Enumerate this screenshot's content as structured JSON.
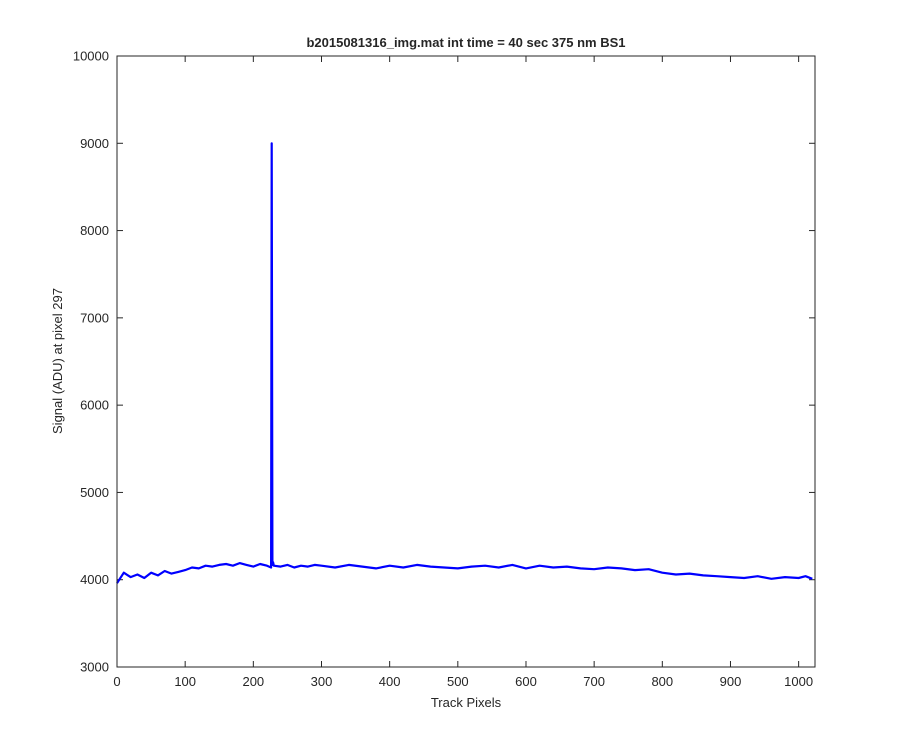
{
  "chart_data": {
    "type": "line",
    "title": "b2015081316_img.mat int time = 40 sec  375 nm BS1",
    "xlabel": "Track Pixels",
    "ylabel": "Signal (ADU) at pixel 297",
    "xlim": [
      0,
      1024
    ],
    "ylim": [
      3000,
      10000
    ],
    "x_ticks": [
      0,
      100,
      200,
      300,
      400,
      500,
      600,
      700,
      800,
      900,
      1000
    ],
    "x_tick_labels": [
      "0",
      "100",
      "200",
      "300",
      "400",
      "500",
      "600",
      "700",
      "800",
      "900",
      "1000"
    ],
    "y_ticks": [
      3000,
      4000,
      5000,
      6000,
      7000,
      8000,
      9000,
      10000
    ],
    "y_tick_labels": [
      "3000",
      "4000",
      "5000",
      "6000",
      "7000",
      "8000",
      "9000",
      "10000"
    ],
    "grid": false,
    "box": true,
    "series": [
      {
        "name": "",
        "color": "#0000ff",
        "x": [
          0,
          10,
          20,
          30,
          40,
          50,
          60,
          70,
          80,
          90,
          100,
          110,
          120,
          130,
          140,
          150,
          160,
          170,
          180,
          190,
          200,
          210,
          220,
          226,
          227,
          228,
          229,
          230,
          240,
          250,
          260,
          270,
          280,
          290,
          300,
          320,
          340,
          360,
          380,
          400,
          420,
          440,
          460,
          480,
          500,
          520,
          540,
          560,
          580,
          600,
          620,
          640,
          660,
          680,
          700,
          720,
          740,
          760,
          780,
          800,
          820,
          840,
          860,
          880,
          900,
          920,
          940,
          960,
          980,
          1000,
          1010,
          1020
        ],
        "y": [
          3960,
          4080,
          4030,
          4060,
          4020,
          4080,
          4050,
          4100,
          4070,
          4090,
          4110,
          4140,
          4130,
          4160,
          4150,
          4170,
          4180,
          4160,
          4190,
          4170,
          4150,
          4180,
          4160,
          4140,
          9000,
          4170,
          4200,
          4160,
          4150,
          4170,
          4140,
          4160,
          4150,
          4170,
          4160,
          4140,
          4170,
          4150,
          4130,
          4160,
          4140,
          4170,
          4150,
          4140,
          4130,
          4150,
          4160,
          4140,
          4170,
          4130,
          4160,
          4140,
          4150,
          4130,
          4120,
          4140,
          4130,
          4110,
          4120,
          4080,
          4060,
          4070,
          4050,
          4040,
          4030,
          4020,
          4040,
          4010,
          4030,
          4020,
          4040,
          4010
        ]
      }
    ]
  }
}
